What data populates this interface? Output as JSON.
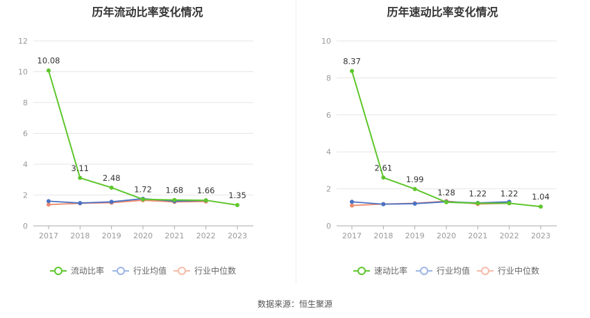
{
  "chart_data": [
    {
      "type": "line",
      "title": "历年流动比率变化情况",
      "categories": [
        "2017",
        "2018",
        "2019",
        "2020",
        "2021",
        "2022",
        "2023"
      ],
      "ylim": [
        0,
        12
      ],
      "yticks": [
        0,
        2,
        4,
        6,
        8,
        10,
        12
      ],
      "grid": true,
      "legend_position": "bottom",
      "series": [
        {
          "name": "流动比率",
          "color": "#5ec62d",
          "values": [
            10.08,
            3.11,
            2.48,
            1.72,
            1.68,
            1.66,
            1.35
          ],
          "labels": [
            "10.08",
            "3.11",
            "2.48",
            "1.72",
            "1.68",
            "1.66",
            "1.35"
          ]
        },
        {
          "name": "行业均值",
          "color": "#4a72c4",
          "values": [
            1.6,
            1.48,
            1.56,
            1.76,
            1.6,
            1.65,
            null
          ]
        },
        {
          "name": "行业中位数",
          "color": "#ee8a6e",
          "values": [
            1.38,
            1.46,
            1.5,
            1.66,
            1.55,
            1.58,
            null
          ]
        }
      ]
    },
    {
      "type": "line",
      "title": "历年速动比率变化情况",
      "categories": [
        "2017",
        "2018",
        "2019",
        "2020",
        "2021",
        "2022",
        "2023"
      ],
      "ylim": [
        0,
        10
      ],
      "yticks": [
        0,
        2,
        4,
        6,
        8,
        10
      ],
      "grid": true,
      "legend_position": "bottom",
      "series": [
        {
          "name": "速动比率",
          "color": "#5ec62d",
          "values": [
            8.37,
            2.61,
            1.99,
            1.28,
            1.22,
            1.22,
            1.04
          ],
          "labels": [
            "8.37",
            "2.61",
            "1.99",
            "1.28",
            "1.22",
            "1.22",
            "1.04"
          ]
        },
        {
          "name": "行业均值",
          "color": "#4a72c4",
          "values": [
            1.3,
            1.17,
            1.2,
            1.3,
            1.24,
            1.3,
            null
          ]
        },
        {
          "name": "行业中位数",
          "color": "#ee8a6e",
          "values": [
            1.1,
            1.18,
            1.22,
            1.34,
            1.18,
            1.22,
            null
          ]
        }
      ]
    }
  ],
  "source_text": "数据来源：恒生聚源"
}
